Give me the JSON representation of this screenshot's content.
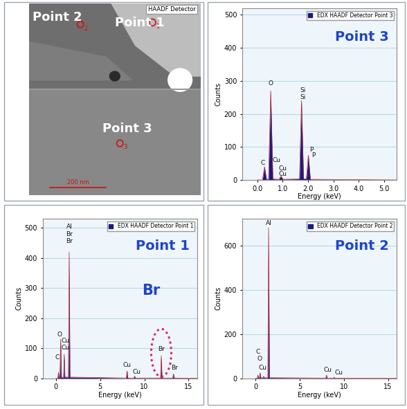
{
  "image": {
    "detector": "HAADF Detector",
    "scale_bar": "200 nm",
    "points": [
      {
        "label": "Point 2",
        "marker": "2"
      },
      {
        "label": "Point 1",
        "marker": "1"
      },
      {
        "label": "Point 3",
        "marker": "3"
      }
    ]
  },
  "chart_data": [
    {
      "type": "line",
      "title": "Point 3",
      "x_label": "Energy (keV)",
      "y_label": "Counts",
      "series": [
        {
          "name": "EDX HAADF Detector Point 3",
          "color": "#1a1a80",
          "x": [
            0.0,
            0.2,
            0.28,
            0.36,
            0.44,
            0.525,
            0.61,
            0.85,
            0.93,
            1.01,
            1.66,
            1.74,
            1.82,
            1.93,
            2.01,
            2.09,
            5.5
          ],
          "values": [
            0,
            0,
            40,
            2,
            2,
            270,
            3,
            2,
            12,
            2,
            3,
            240,
            4,
            3,
            75,
            2,
            0
          ]
        }
      ],
      "xlim": [
        -0.6,
        5.5
      ],
      "xticks": [
        {
          "value": 0,
          "label": "0.0"
        },
        {
          "value": 1,
          "label": "1.0"
        },
        {
          "value": 2,
          "label": "2.0"
        },
        {
          "value": 3,
          "label": "3.0"
        },
        {
          "value": 4,
          "label": "4.0"
        },
        {
          "value": 5,
          "label": "5.0"
        }
      ],
      "ylim": [
        0,
        520
      ],
      "yticks": [
        0,
        100,
        200,
        300,
        400,
        500
      ],
      "grid": true,
      "legend": "upper right",
      "annotations": [
        {
          "text": "C",
          "x": 0.22,
          "y": 52
        },
        {
          "text": "O",
          "x": 0.525,
          "y": 292
        },
        {
          "text": "Cu",
          "x": 0.75,
          "y": 60
        },
        {
          "text": "Cu",
          "x": 1.0,
          "y": 34
        },
        {
          "text": "Cu",
          "x": 1.0,
          "y": 17
        },
        {
          "text": "Si",
          "x": 1.8,
          "y": 272
        },
        {
          "text": "Si",
          "x": 1.8,
          "y": 250
        },
        {
          "text": "P",
          "x": 2.12,
          "y": 92
        },
        {
          "text": "P",
          "x": 2.2,
          "y": 74
        }
      ]
    },
    {
      "type": "line",
      "title": "Point 1",
      "x_label": "Energy (keV)",
      "y_label": "Counts",
      "series": [
        {
          "name": "EDX HAADF Detector Point 1",
          "color": "#1a1a80",
          "x": [
            0.0,
            0.2,
            0.28,
            0.36,
            0.44,
            0.525,
            0.61,
            0.85,
            0.93,
            1.01,
            1.4,
            1.49,
            1.58,
            7.95,
            8.04,
            8.13,
            8.82,
            8.9,
            8.98,
            11.82,
            11.91,
            12.0,
            13.2,
            13.29,
            13.38,
            16.0
          ],
          "values": [
            0,
            0,
            20,
            3,
            3,
            130,
            4,
            3,
            80,
            4,
            4,
            420,
            4,
            1,
            25,
            1,
            1,
            8,
            1,
            1,
            75,
            1,
            1,
            15,
            1,
            0
          ]
        }
      ],
      "xlim": [
        -1.5,
        16
      ],
      "xticks": [
        0,
        5,
        10,
        15
      ],
      "ylim": [
        0,
        530
      ],
      "yticks": [
        0,
        100,
        200,
        300,
        400,
        500
      ],
      "grid": true,
      "legend": "upper right",
      "callout": {
        "text": "Br",
        "x": 11.91
      },
      "annotations": [
        {
          "text": "Al",
          "x": 1.49,
          "y": 505
        },
        {
          "text": "Br",
          "x": 1.49,
          "y": 478
        },
        {
          "text": "Br",
          "x": 1.49,
          "y": 455
        },
        {
          "text": "C",
          "x": 0.1,
          "y": 70
        },
        {
          "text": "O",
          "x": 0.4,
          "y": 145
        },
        {
          "text": "Cu",
          "x": 1.1,
          "y": 125
        },
        {
          "text": "Cu",
          "x": 1.1,
          "y": 102
        },
        {
          "text": "Cu",
          "x": 8.04,
          "y": 45
        },
        {
          "text": "Cu",
          "x": 9.1,
          "y": 20
        },
        {
          "text": "Br",
          "x": 11.91,
          "y": 97
        },
        {
          "text": "Br",
          "x": 13.4,
          "y": 35
        }
      ]
    },
    {
      "type": "line",
      "title": "Point 2",
      "x_label": "Energy (keV)",
      "y_label": "Counts",
      "series": [
        {
          "name": "EDX HAADF Detector Point 2",
          "color": "#1a1a80",
          "x": [
            0.0,
            0.2,
            0.28,
            0.36,
            0.44,
            0.525,
            0.61,
            0.85,
            0.93,
            1.01,
            1.4,
            1.49,
            1.58,
            7.95,
            8.04,
            8.13,
            8.82,
            8.9,
            8.98,
            16.0
          ],
          "values": [
            0,
            0,
            15,
            2,
            2,
            25,
            3,
            2,
            10,
            2,
            3,
            680,
            3,
            1,
            15,
            1,
            1,
            5,
            1,
            0
          ]
        }
      ],
      "xlim": [
        -1.5,
        16
      ],
      "xticks": [
        0,
        5,
        10,
        15
      ],
      "ylim": [
        0,
        720
      ],
      "yticks": [
        0,
        200,
        400,
        600
      ],
      "grid": true,
      "legend": "upper right",
      "annotations": [
        {
          "text": "Al",
          "x": 1.49,
          "y": 700
        },
        {
          "text": "C",
          "x": 0.3,
          "y": 118
        },
        {
          "text": "O",
          "x": 0.45,
          "y": 88
        },
        {
          "text": "Cu",
          "x": 0.8,
          "y": 48
        },
        {
          "text": "Cu",
          "x": 8.2,
          "y": 38
        },
        {
          "text": "Cu",
          "x": 9.4,
          "y": 24
        }
      ]
    }
  ]
}
